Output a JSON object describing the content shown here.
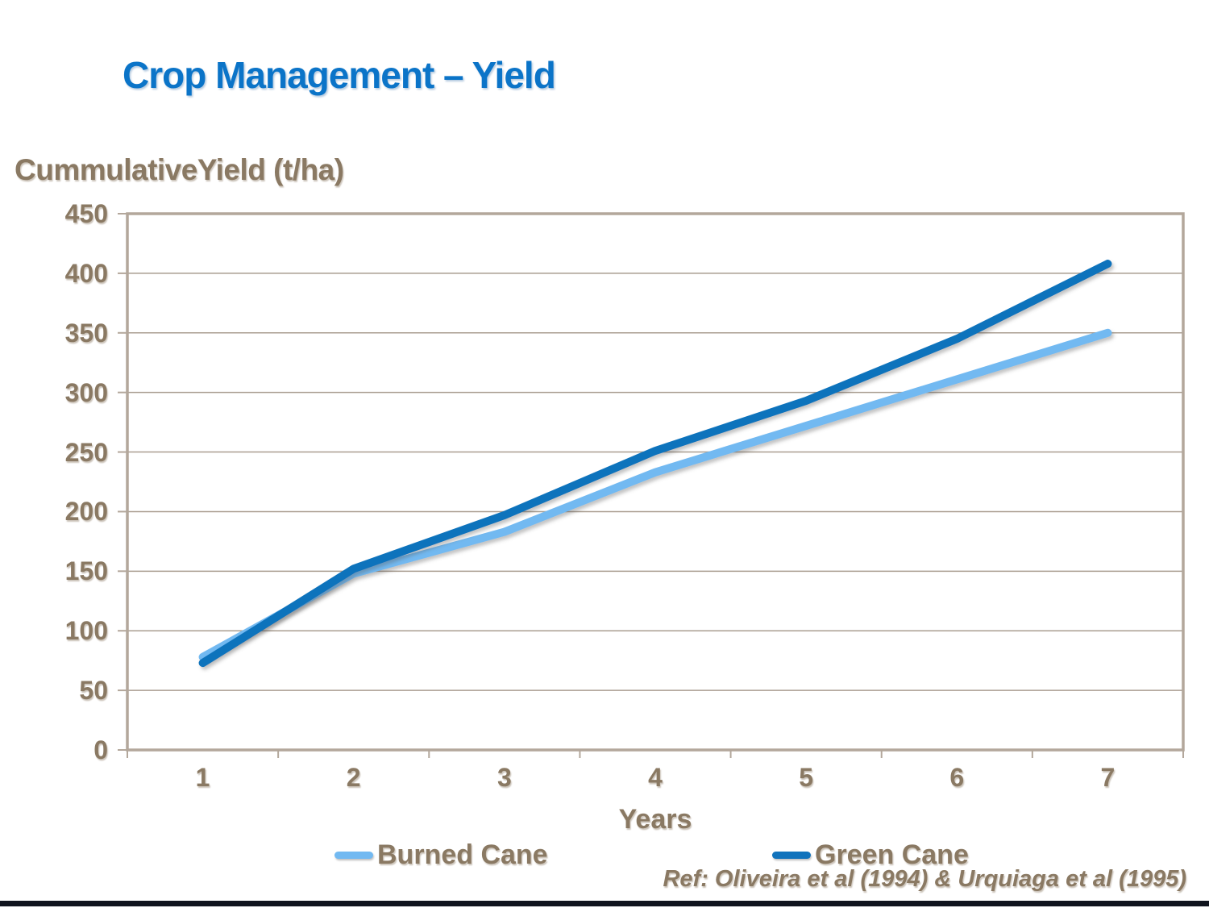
{
  "page": {
    "title": "Crop Management – Yield",
    "reference": "Ref: Oliveira et al (1994) & Urquiaga et al (1995)"
  },
  "colors": {
    "title_blue": "#0b74c8",
    "text_brown": "#8a7963",
    "gridline": "#a99d90",
    "plot_border": "#b3a79b",
    "footer_bar": "#10141e"
  },
  "chart_data": {
    "type": "line",
    "title": "Crop Management – Yield",
    "ylabel": "CummulativeYield (t/ha)",
    "xlabel": "Years",
    "categories": [
      1,
      2,
      3,
      4,
      5,
      6,
      7
    ],
    "y_ticks": [
      0,
      50,
      100,
      150,
      200,
      250,
      300,
      350,
      400,
      450
    ],
    "ylim": [
      0,
      450
    ],
    "grid": "horizontal",
    "legend_position": "bottom",
    "series": [
      {
        "name": "Burned Cane",
        "color": "#72b9f1",
        "values": [
          78,
          148,
          183,
          233,
          272,
          311,
          350
        ]
      },
      {
        "name": "Green Cane",
        "color": "#1173bc",
        "values": [
          73,
          152,
          197,
          251,
          293,
          345,
          408
        ]
      }
    ]
  }
}
